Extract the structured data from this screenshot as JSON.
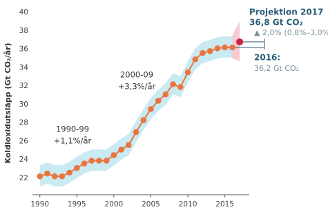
{
  "chart_data": {
    "type": "line",
    "y_label": "Koldioxidutsläpp (Gt CO₂/år)",
    "x": [
      1990,
      1991,
      1992,
      1993,
      1994,
      1995,
      1996,
      1997,
      1998,
      1999,
      2000,
      2001,
      2002,
      2003,
      2004,
      2005,
      2006,
      2007,
      2008,
      2009,
      2010,
      2011,
      2012,
      2013,
      2014,
      2015,
      2016
    ],
    "values": [
      22.2,
      22.5,
      22.2,
      22.2,
      22.6,
      23.1,
      23.6,
      23.9,
      23.9,
      23.9,
      24.5,
      25.1,
      25.6,
      27.0,
      28.3,
      29.5,
      30.4,
      31.1,
      32.2,
      31.9,
      33.5,
      34.9,
      35.6,
      35.8,
      36.1,
      36.2,
      36.2
    ],
    "color": "#ea7440",
    "band": {
      "color": "#c9eaf1",
      "lower": [
        21.1,
        21.4,
        21.1,
        21.1,
        21.5,
        22.0,
        22.5,
        22.8,
        22.8,
        22.8,
        23.4,
        24.0,
        24.5,
        25.9,
        27.2,
        28.4,
        29.3,
        30.0,
        31.1,
        30.8,
        32.4,
        33.8,
        34.5,
        34.7,
        35.0,
        35.1,
        35.1
      ],
      "upper": [
        23.4,
        23.7,
        23.4,
        23.4,
        23.8,
        24.3,
        24.8,
        25.1,
        25.1,
        25.1,
        25.7,
        26.3,
        26.8,
        28.2,
        29.5,
        30.7,
        31.6,
        32.3,
        33.4,
        33.1,
        34.7,
        36.1,
        36.8,
        37.0,
        37.3,
        37.4,
        37.4
      ]
    },
    "projection": {
      "title": "Projektion 2017",
      "x": 2017,
      "value": 36.8,
      "value_label": "36,8 Gt CO₂",
      "change": "▲ 2,0% (0,8%–3,0%)",
      "color": "#c8203f",
      "band_color": "#f8c9d3",
      "band_x": [
        2016,
        2017
      ],
      "band_lower": [
        35.0,
        34.7
      ],
      "band_upper": [
        37.5,
        39.0
      ]
    },
    "last": {
      "label": "2016:",
      "value_label": "36,2 Gt CO₂"
    },
    "notes": [
      {
        "period": "1990-99",
        "rate": "+1,1%/år"
      },
      {
        "period": "2000-09",
        "rate": "+3,3%/år"
      }
    ],
    "xlim": [
      1989,
      2018.3
    ],
    "ylim": [
      20.2,
      40
    ],
    "xticks": [
      1990,
      1995,
      2000,
      2005,
      2010,
      2015
    ],
    "yticks": [
      22,
      24,
      26,
      28,
      30,
      32,
      34,
      36,
      38,
      40
    ]
  }
}
